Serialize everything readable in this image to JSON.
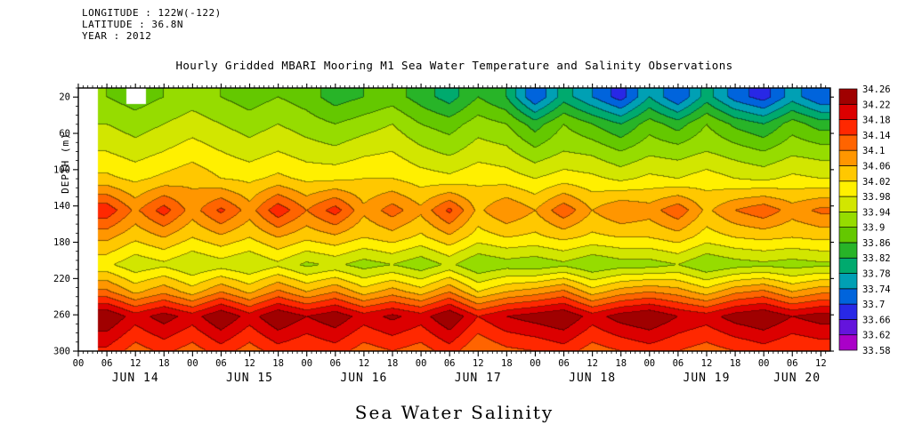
{
  "header": {
    "lines": [
      "LONGITUDE : 122W(-122)",
      "LATITUDE : 36.8N",
      "YEAR : 2012"
    ]
  },
  "chart_data": {
    "type": "heatmap",
    "title": "Hourly Gridded MBARI Mooring M1 Sea Water Temperature and Salinity Observations",
    "bottom_title": "Sea Water Salinity",
    "ylabel": "DEPTH (m)",
    "y_ticks": [
      20,
      60,
      100,
      140,
      180,
      220,
      260,
      300
    ],
    "y_range": [
      10,
      300
    ],
    "x_range_days": [
      0,
      6.583
    ],
    "x_day_labels": [
      "JUN 14",
      "JUN 15",
      "JUN 16",
      "JUN 17",
      "JUN 18",
      "JUN 19",
      "JUN 20"
    ],
    "x_hour_tick_labels": [
      "00",
      "06",
      "12",
      "18"
    ],
    "grid_lines": false,
    "legend_position": "right",
    "colorbar": {
      "levels": [
        33.58,
        33.62,
        33.66,
        33.7,
        33.74,
        33.78,
        33.82,
        33.86,
        33.9,
        33.94,
        33.98,
        34.02,
        34.06,
        34.1,
        34.14,
        34.18,
        34.22,
        34.26
      ],
      "labels_top_to_bottom": [
        "34.26",
        "34.22",
        "34.18",
        "34.14",
        "34.1",
        "34.06",
        "34.02",
        "33.98",
        "33.94",
        "33.9",
        "33.86",
        "33.82",
        "33.78",
        "33.74",
        "33.7",
        "33.66",
        "33.62",
        "33.58"
      ],
      "colors_low_to_high": [
        "#aa00c8",
        "#6414dc",
        "#2828e6",
        "#0064dc",
        "#00a0b4",
        "#00aa6e",
        "#28b428",
        "#64c800",
        "#96dc00",
        "#d2e600",
        "#fff000",
        "#ffc800",
        "#ff9600",
        "#ff6400",
        "#ff2800",
        "#dc0000",
        "#a00000"
      ]
    },
    "grid": {
      "depths": [
        20,
        50,
        80,
        110,
        145,
        175,
        205,
        235,
        262,
        300
      ],
      "times_days": [
        0.25,
        0.5,
        0.75,
        1,
        1.25,
        1.5,
        1.75,
        2,
        2.25,
        2.5,
        2.75,
        3,
        3.25,
        3.5,
        3.75,
        4,
        4.25,
        4.5,
        4.75,
        5,
        5.25,
        5.5,
        5.75,
        6,
        6.25,
        6.5
      ],
      "salinity": [
        [
          33.9,
          33.88,
          33.9,
          33.92,
          33.9,
          33.88,
          33.9,
          33.88,
          33.84,
          33.86,
          33.88,
          33.84,
          33.8,
          33.86,
          33.82,
          33.7,
          33.8,
          33.74,
          33.68,
          33.78,
          33.7,
          33.8,
          33.72,
          33.68,
          33.76,
          33.7
        ],
        [
          33.94,
          33.92,
          33.94,
          33.96,
          33.94,
          33.92,
          33.94,
          33.92,
          33.9,
          33.92,
          33.94,
          33.9,
          33.88,
          33.92,
          33.9,
          33.84,
          33.9,
          33.86,
          33.82,
          33.88,
          33.84,
          33.9,
          33.85,
          33.82,
          33.88,
          33.84
        ],
        [
          33.98,
          33.96,
          33.98,
          34,
          33.98,
          33.96,
          33.98,
          33.96,
          33.95,
          33.97,
          33.98,
          33.95,
          33.93,
          33.96,
          33.95,
          33.91,
          33.94,
          33.93,
          33.9,
          33.93,
          33.92,
          33.94,
          33.92,
          33.9,
          33.93,
          33.92
        ],
        [
          34.03,
          34.01,
          34.03,
          34.05,
          34.02,
          34.01,
          34.03,
          34.01,
          34.01,
          34.02,
          34.02,
          34,
          33.99,
          34.01,
          34,
          33.98,
          34,
          33.99,
          33.97,
          33.99,
          33.98,
          34,
          33.98,
          33.97,
          33.99,
          33.98
        ],
        [
          34.17,
          34.09,
          34.16,
          34.08,
          34.15,
          34.08,
          34.17,
          34.1,
          34.16,
          34.07,
          34.12,
          34.07,
          34.15,
          34.05,
          34.1,
          34.06,
          34.13,
          34.06,
          34.1,
          34.08,
          34.13,
          34.05,
          34.1,
          34.13,
          34.08,
          34.11
        ],
        [
          34.07,
          34.03,
          34.06,
          34.02,
          34.05,
          34.02,
          34.06,
          34.03,
          34.05,
          34.02,
          34.04,
          34.01,
          34.05,
          34,
          34.02,
          34.01,
          34.03,
          34.01,
          34.02,
          34.02,
          34.04,
          34,
          34.02,
          34.03,
          34.02,
          34.03
        ],
        [
          33.99,
          33.95,
          33.97,
          33.94,
          33.96,
          33.94,
          33.97,
          33.93,
          33.95,
          33.92,
          33.94,
          33.91,
          33.95,
          33.9,
          33.92,
          33.91,
          33.93,
          33.9,
          33.92,
          33.92,
          33.94,
          33.9,
          33.92,
          33.93,
          33.92,
          33.93
        ],
        [
          34.11,
          34.05,
          34.09,
          34.04,
          34.1,
          34.05,
          34.11,
          34.06,
          34.1,
          34.04,
          34.08,
          34.04,
          34.1,
          34.02,
          34.06,
          34.08,
          34.11,
          34.04,
          34.08,
          34.1,
          34.08,
          34.04,
          34.09,
          34.11,
          34.06,
          34.09
        ],
        [
          34.26,
          34.2,
          34.24,
          34.2,
          34.26,
          34.2,
          34.26,
          34.22,
          34.25,
          34.2,
          34.23,
          34.2,
          34.26,
          34.18,
          34.22,
          34.24,
          34.26,
          34.2,
          34.24,
          34.26,
          34.22,
          34.2,
          34.24,
          34.26,
          34.22,
          34.24
        ],
        [
          34.17,
          34.12,
          34.15,
          34.12,
          34.16,
          34.12,
          34.16,
          34.14,
          34.16,
          34.12,
          34.14,
          34.12,
          34.16,
          34.1,
          34.13,
          34.14,
          34.16,
          34.12,
          34.14,
          34.16,
          34.14,
          34.12,
          34.14,
          34.16,
          34.14,
          34.15
        ]
      ]
    },
    "no_data": {
      "before_day": 0.17,
      "patches": [
        {
          "t0": 0.42,
          "t1": 0.59,
          "d0": 10,
          "d1": 28
        }
      ]
    }
  }
}
